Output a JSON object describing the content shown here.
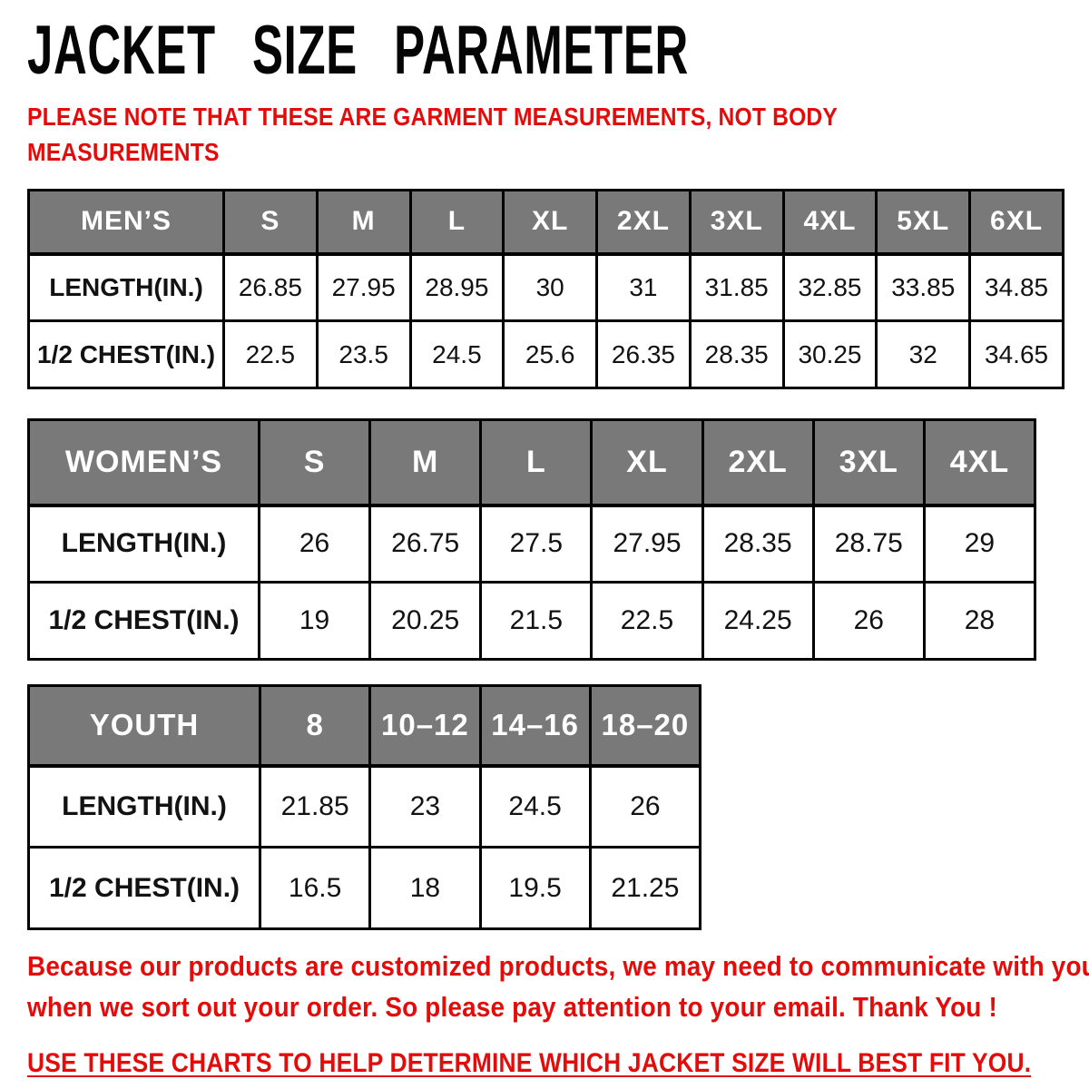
{
  "page": {
    "title": "JACKET SIZE PARAMETER",
    "note_lines": [
      "PLEASE NOTE THAT THESE ARE GARMENT MEASUREMENTS, NOT BODY",
      "MEASUREMENTS"
    ],
    "footer_lines": [
      "Because our products are customized products, we may need to communicate with you",
      "when we sort out your order. So please pay attention to your email. Thank You !"
    ],
    "fit_instruction": "USE THESE CHARTS TO HELP DETERMINE WHICH JACKET SIZE WILL BEST FIT YOU."
  },
  "colors": {
    "accent_red": "#e40c0a",
    "header_gray": "#797979",
    "header_text": "#ffffff",
    "border_black": "#000000"
  },
  "tables": [
    {
      "name": "mens",
      "header": [
        "MEN’S",
        "S",
        "M",
        "L",
        "XL",
        "2XL",
        "3XL",
        "4XL",
        "5XL",
        "6XL"
      ],
      "rows": [
        [
          "LENGTH(IN.)",
          "26.85",
          "27.95",
          "28.95",
          "30",
          "31",
          "31.85",
          "32.85",
          "33.85",
          "34.85"
        ],
        [
          "1/2 CHEST(IN.)",
          "22.5",
          "23.5",
          "24.5",
          "25.6",
          "26.35",
          "28.35",
          "30.25",
          "32",
          "34.65"
        ]
      ]
    },
    {
      "name": "womens",
      "header": [
        "WOMEN’S",
        "S",
        "M",
        "L",
        "XL",
        "2XL",
        "3XL",
        "4XL"
      ],
      "rows": [
        [
          "LENGTH(IN.)",
          "26",
          "26.75",
          "27.5",
          "27.95",
          "28.35",
          "28.75",
          "29"
        ],
        [
          "1/2 CHEST(IN.)",
          "19",
          "20.25",
          "21.5",
          "22.5",
          "24.25",
          "26",
          "28"
        ]
      ]
    },
    {
      "name": "youth",
      "header": [
        "YOUTH",
        "8",
        "10–12",
        "14–16",
        "18–20"
      ],
      "rows": [
        [
          "LENGTH(IN.)",
          "21.85",
          "23",
          "24.5",
          "26"
        ],
        [
          "1/2 CHEST(IN.)",
          "16.5",
          "18",
          "19.5",
          "21.25"
        ]
      ]
    }
  ]
}
